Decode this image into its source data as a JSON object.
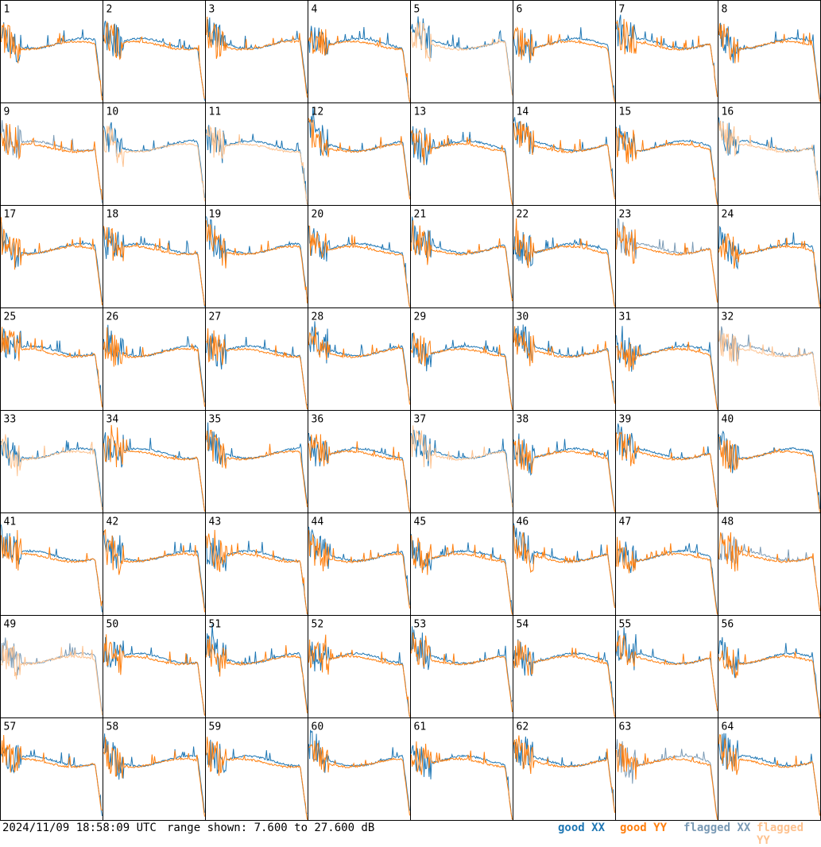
{
  "footer": {
    "timestamp": "2024/11/09 18:58:09 UTC",
    "range_text": "range shown: 7.600 to 27.600 dB"
  },
  "legend": [
    {
      "key": "good_xx",
      "label": "good XX",
      "color": "#1f77b4"
    },
    {
      "key": "good_yy",
      "label": "good YY",
      "color": "#ff7f0e"
    },
    {
      "key": "flagged_xx",
      "label": "flagged XX",
      "color": "#7a9ab5"
    },
    {
      "key": "flagged_yy",
      "label": "flagged YY",
      "color": "#fdc28f"
    }
  ],
  "chart_data": {
    "type": "line",
    "grid": {
      "rows": 8,
      "cols": 8
    },
    "ylim_db": [
      7.6,
      27.6
    ],
    "series_keys": [
      "good_xx",
      "good_yy",
      "flagged_xx",
      "flagged_yy"
    ],
    "panels": [
      {
        "label": "1",
        "xx": "good",
        "yy": "good"
      },
      {
        "label": "2",
        "xx": "good",
        "yy": "good"
      },
      {
        "label": "3",
        "xx": "good",
        "yy": "good"
      },
      {
        "label": "4",
        "xx": "good",
        "yy": "good"
      },
      {
        "label": "5",
        "xx": "good",
        "yy": "flagged"
      },
      {
        "label": "6",
        "xx": "good",
        "yy": "good"
      },
      {
        "label": "7",
        "xx": "good",
        "yy": "good"
      },
      {
        "label": "8",
        "xx": "good",
        "yy": "good"
      },
      {
        "label": "9",
        "xx": "flagged",
        "yy": "good"
      },
      {
        "label": "10",
        "xx": "good",
        "yy": "flagged"
      },
      {
        "label": "11",
        "xx": "good",
        "yy": "flagged"
      },
      {
        "label": "12",
        "xx": "good",
        "yy": "good"
      },
      {
        "label": "13",
        "xx": "good",
        "yy": "good"
      },
      {
        "label": "14",
        "xx": "good",
        "yy": "good"
      },
      {
        "label": "15",
        "xx": "good",
        "yy": "good"
      },
      {
        "label": "16",
        "xx": "good",
        "yy": "flagged"
      },
      {
        "label": "17",
        "xx": "good",
        "yy": "good"
      },
      {
        "label": "18",
        "xx": "good",
        "yy": "good"
      },
      {
        "label": "19",
        "xx": "good",
        "yy": "good"
      },
      {
        "label": "20",
        "xx": "good",
        "yy": "good"
      },
      {
        "label": "21",
        "xx": "good",
        "yy": "good"
      },
      {
        "label": "22",
        "xx": "good",
        "yy": "good"
      },
      {
        "label": "23",
        "xx": "flagged",
        "yy": "good"
      },
      {
        "label": "24",
        "xx": "good",
        "yy": "good"
      },
      {
        "label": "25",
        "xx": "good",
        "yy": "good"
      },
      {
        "label": "26",
        "xx": "good",
        "yy": "good"
      },
      {
        "label": "27",
        "xx": "good",
        "yy": "good"
      },
      {
        "label": "28",
        "xx": "good",
        "yy": "good"
      },
      {
        "label": "29",
        "xx": "good",
        "yy": "good"
      },
      {
        "label": "30",
        "xx": "good",
        "yy": "good"
      },
      {
        "label": "31",
        "xx": "good",
        "yy": "good"
      },
      {
        "label": "32",
        "xx": "flagged",
        "yy": "flagged"
      },
      {
        "label": "33",
        "xx": "good",
        "yy": "flagged"
      },
      {
        "label": "34",
        "xx": "good",
        "yy": "good"
      },
      {
        "label": "35",
        "xx": "good",
        "yy": "good"
      },
      {
        "label": "36",
        "xx": "good",
        "yy": "good"
      },
      {
        "label": "37",
        "xx": "good",
        "yy": "flagged"
      },
      {
        "label": "38",
        "xx": "good",
        "yy": "good"
      },
      {
        "label": "39",
        "xx": "good",
        "yy": "good"
      },
      {
        "label": "40",
        "xx": "good",
        "yy": "good"
      },
      {
        "label": "41",
        "xx": "good",
        "yy": "good"
      },
      {
        "label": "42",
        "xx": "good",
        "yy": "good"
      },
      {
        "label": "43",
        "xx": "good",
        "yy": "good"
      },
      {
        "label": "44",
        "xx": "good",
        "yy": "good"
      },
      {
        "label": "45",
        "xx": "good",
        "yy": "good"
      },
      {
        "label": "46",
        "xx": "good",
        "yy": "good"
      },
      {
        "label": "47",
        "xx": "good",
        "yy": "good"
      },
      {
        "label": "48",
        "xx": "flagged",
        "yy": "good"
      },
      {
        "label": "49",
        "xx": "flagged",
        "yy": "flagged"
      },
      {
        "label": "50",
        "xx": "good",
        "yy": "good"
      },
      {
        "label": "51",
        "xx": "good",
        "yy": "good"
      },
      {
        "label": "52",
        "xx": "good",
        "yy": "good"
      },
      {
        "label": "53",
        "xx": "good",
        "yy": "good"
      },
      {
        "label": "54",
        "xx": "good",
        "yy": "good"
      },
      {
        "label": "55",
        "xx": "good",
        "yy": "good"
      },
      {
        "label": "56",
        "xx": "good",
        "yy": "good"
      },
      {
        "label": "57",
        "xx": "good",
        "yy": "good"
      },
      {
        "label": "58",
        "xx": "good",
        "yy": "good"
      },
      {
        "label": "59",
        "xx": "good",
        "yy": "good"
      },
      {
        "label": "60",
        "xx": "good",
        "yy": "good"
      },
      {
        "label": "61",
        "xx": "good",
        "yy": "good"
      },
      {
        "label": "62",
        "xx": "good",
        "yy": "good"
      },
      {
        "label": "63",
        "xx": "flagged",
        "yy": "good"
      },
      {
        "label": "64",
        "xx": "good",
        "yy": "good"
      }
    ]
  }
}
